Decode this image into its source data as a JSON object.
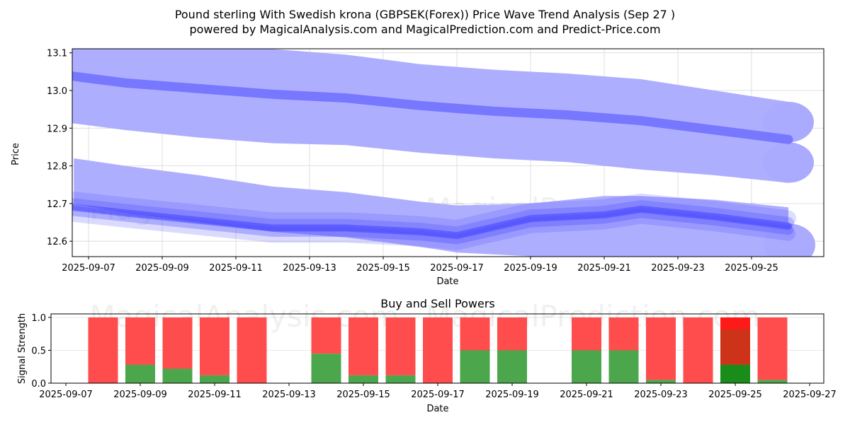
{
  "chart_data": [
    {
      "type": "area",
      "title": "Pound sterling With Swedish krona (GBPSEK(Forex)) Price Wave Trend Analysis (Sep 27 )",
      "subtitle": "powered by MagicalAnalysis.com and MagicalPrediction.com and Predict-Price.com",
      "xlabel": "Date",
      "ylabel": "Price",
      "ylim": [
        12.56,
        13.11
      ],
      "xlim": [
        "2025-09-06",
        "2025-09-26"
      ],
      "grid": true,
      "x_ticks": [
        "2025-09-07",
        "2025-09-09",
        "2025-09-11",
        "2025-09-13",
        "2025-09-15",
        "2025-09-17",
        "2025-09-19",
        "2025-09-21",
        "2025-09-23",
        "2025-09-25"
      ],
      "y_ticks": [
        "12.6",
        "12.7",
        "12.8",
        "12.9",
        "13.0",
        "13.1"
      ],
      "watermarks": [
        "MagicalAnalysis.com",
        "MagicalPrediction.com"
      ],
      "colors": {
        "band": "#aaaaff",
        "line": "#7777ff",
        "dense": "#4444ff"
      },
      "series": [
        {
          "name": "upper-wave-center",
          "x": [
            "2025-09-06.4",
            "2025-09-08",
            "2025-09-10",
            "2025-09-12",
            "2025-09-14",
            "2025-09-16",
            "2025-09-18",
            "2025-09-20",
            "2025-09-22",
            "2025-09-24",
            "2025-09-26"
          ],
          "center": [
            13.04,
            13.02,
            13.005,
            12.99,
            12.98,
            12.96,
            12.945,
            12.935,
            12.92,
            12.895,
            12.87
          ],
          "band_upper": [
            13.12,
            13.12,
            13.115,
            13.11,
            13.095,
            13.07,
            13.055,
            13.045,
            13.03,
            13.0,
            12.97
          ],
          "band_lower": [
            12.915,
            12.895,
            12.875,
            12.86,
            12.855,
            12.835,
            12.82,
            12.81,
            12.79,
            12.775,
            12.755
          ]
        },
        {
          "name": "lower-wave-center",
          "x": [
            "2025-09-06.6",
            "2025-09-08",
            "2025-09-10",
            "2025-09-12",
            "2025-09-14",
            "2025-09-16",
            "2025-09-17",
            "2025-09-19",
            "2025-09-21",
            "2025-09-22",
            "2025-09-24",
            "2025-09-26"
          ],
          "center": [
            12.69,
            12.675,
            12.655,
            12.635,
            12.635,
            12.625,
            12.615,
            12.66,
            12.67,
            12.685,
            12.665,
            12.64
          ],
          "band_upper": [
            12.82,
            12.8,
            12.775,
            12.745,
            12.73,
            12.705,
            12.695,
            12.7,
            12.72,
            12.72,
            12.71,
            12.69
          ],
          "band_lower": [
            12.7,
            12.675,
            12.65,
            12.625,
            12.61,
            12.585,
            12.57,
            12.56,
            12.56,
            12.56,
            12.56,
            12.56
          ]
        }
      ]
    },
    {
      "type": "bar",
      "title": "Buy and Sell Powers",
      "xlabel": "Date",
      "ylabel": "Signal Strength",
      "ylim": [
        0,
        1.05
      ],
      "xlim": [
        "2025-09-06.6",
        "2025-09-27.4"
      ],
      "grid": true,
      "x_ticks": [
        "2025-09-07",
        "2025-09-09",
        "2025-09-11",
        "2025-09-13",
        "2025-09-15",
        "2025-09-17",
        "2025-09-19",
        "2025-09-21",
        "2025-09-23",
        "2025-09-25",
        "2025-09-27"
      ],
      "y_ticks": [
        "0.0",
        "0.5",
        "1.0"
      ],
      "colors": {
        "buy": "#4ca64c",
        "sell": "#ff4c4c",
        "buy_dark": "#1a8c1a",
        "sell_dark": "#cc3319",
        "sell_top": "#ff1a1a"
      },
      "categories": [
        "2025-09-08",
        "2025-09-09",
        "2025-09-10",
        "2025-09-11",
        "2025-09-12",
        "2025-09-14",
        "2025-09-15",
        "2025-09-16",
        "2025-09-17",
        "2025-09-18",
        "2025-09-19",
        "2025-09-21",
        "2025-09-22",
        "2025-09-23",
        "2025-09-24",
        "2025-09-25",
        "2025-09-26"
      ],
      "series": [
        {
          "name": "Buy",
          "values": [
            0.0,
            0.28,
            0.22,
            0.12,
            0.0,
            0.45,
            0.12,
            0.12,
            0.0,
            0.5,
            0.5,
            0.5,
            0.5,
            0.05,
            0.0,
            0.28,
            0.05
          ]
        },
        {
          "name": "Sell",
          "values": [
            1.0,
            0.72,
            0.78,
            0.88,
            1.0,
            0.55,
            0.88,
            0.88,
            1.0,
            0.5,
            0.5,
            0.5,
            0.5,
            0.95,
            1.0,
            0.72,
            0.95
          ]
        }
      ],
      "highlight_category": "2025-09-25",
      "watermarks": [
        "MagicalAnalysis.com",
        "MagicalPrediction.com"
      ]
    }
  ]
}
